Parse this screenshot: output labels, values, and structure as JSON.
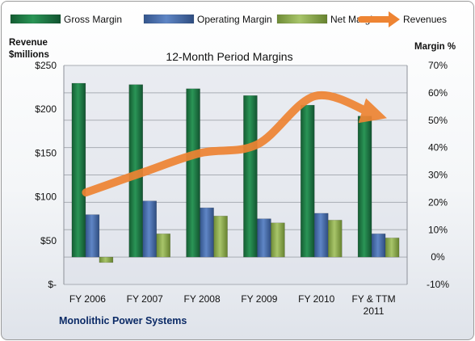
{
  "chart_data": {
    "type": "bar",
    "title": "12-Month Period Margins",
    "company": "Monolithic Power Systems",
    "left_axis": {
      "label_line1": "Revenue",
      "label_line2": "$millions",
      "range": [
        0,
        250
      ],
      "ticks": [
        {
          "value": 0,
          "label": "$-"
        },
        {
          "value": 50,
          "label": "$50"
        },
        {
          "value": 100,
          "label": "$100"
        },
        {
          "value": 150,
          "label": "$150"
        },
        {
          "value": 200,
          "label": "$200"
        },
        {
          "value": 250,
          "label": "$250"
        }
      ]
    },
    "right_axis": {
      "label": "Margin %",
      "range": [
        -10,
        70
      ],
      "ticks": [
        {
          "value": -10,
          "label": "-10%"
        },
        {
          "value": 0,
          "label": "0%"
        },
        {
          "value": 10,
          "label": "10%"
        },
        {
          "value": 20,
          "label": "20%"
        },
        {
          "value": 30,
          "label": "30%"
        },
        {
          "value": 40,
          "label": "40%"
        },
        {
          "value": 50,
          "label": "50%"
        },
        {
          "value": 60,
          "label": "60%"
        },
        {
          "value": 70,
          "label": "70%"
        }
      ]
    },
    "categories": [
      {
        "line1": "FY 2006",
        "line2": ""
      },
      {
        "line1": "FY 2007",
        "line2": ""
      },
      {
        "line1": "FY 2008",
        "line2": ""
      },
      {
        "line1": "FY 2009",
        "line2": ""
      },
      {
        "line1": "FY 2010",
        "line2": ""
      },
      {
        "line1": "FY & TTM",
        "line2": "2011"
      }
    ],
    "series": [
      {
        "name": "Gross Margin",
        "axis": "right",
        "kind": "bar",
        "color": "#1e7a45",
        "values": [
          63.5,
          63,
          61.5,
          59,
          55.5,
          51.5
        ]
      },
      {
        "name": "Operating Margin",
        "axis": "right",
        "kind": "bar",
        "color": "#4b70ae",
        "values": [
          15.5,
          20.5,
          18,
          14,
          16,
          8.5
        ]
      },
      {
        "name": "Net Margin",
        "axis": "right",
        "kind": "bar",
        "color": "#94b356",
        "values": [
          -2,
          8.5,
          15,
          12.5,
          13.5,
          7
        ]
      },
      {
        "name": "Revenues",
        "axis": "left",
        "kind": "line",
        "color": "#ee8433",
        "values": [
          105,
          128,
          150,
          160,
          215,
          195
        ]
      }
    ],
    "grid": true,
    "legend_position": "top"
  }
}
